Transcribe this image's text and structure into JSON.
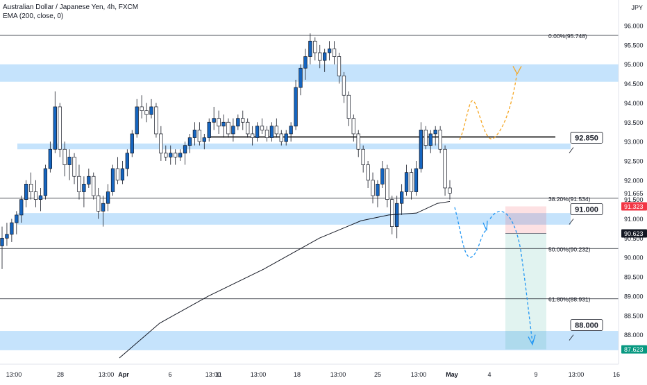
{
  "header": {
    "title": "Australian Dollar / Japanese Yen, 4h, FXCM",
    "indicator": "EMA (200, close, 0)",
    "currency": "JPY"
  },
  "chart_data": {
    "type": "candlestick",
    "symbol": "AUDJPY",
    "timeframe": "4h",
    "ylim": [
      87.3,
      96.4
    ],
    "price_ticks": [
      88.0,
      88.5,
      89.0,
      89.5,
      90.0,
      90.5,
      91.0,
      91.5,
      92.0,
      92.5,
      93.0,
      93.5,
      94.0,
      94.5,
      95.0,
      95.5,
      96.0
    ],
    "price_tick_labels": [
      "88.000",
      "88.500",
      "89.000",
      "89.500",
      "90.000",
      "90.500",
      "91.000",
      "91.500",
      "92.000",
      "92.500",
      "93.000",
      "93.500",
      "94.000",
      "94.500",
      "95.000",
      "95.500",
      "96.000"
    ],
    "time_labels": [
      "13:00",
      "28",
      "13:00",
      "Apr",
      "6",
      "13:00",
      "11",
      "13:00",
      "18",
      "13:00",
      "25",
      "13:00",
      "May",
      "4",
      "9",
      "13:00",
      "16"
    ],
    "axis_badges": [
      {
        "text": "91.665",
        "price": 91.665,
        "color": "#ffffff",
        "text_color": "#131722"
      },
      {
        "text": "91.323",
        "price": 91.323,
        "color": "#f23645",
        "text_color": "#ffffff"
      },
      {
        "text": "90.623",
        "price": 90.623,
        "color": "#131722",
        "text_color": "#ffffff"
      },
      {
        "text": "87.623",
        "price": 87.623,
        "color": "#089981",
        "text_color": "#ffffff"
      }
    ],
    "fib_levels": [
      {
        "label": "0.00%(95.748)",
        "price": 95.748
      },
      {
        "label": "38.20%(91.534)",
        "price": 91.534
      },
      {
        "label": "50.00%(90.232)",
        "price": 90.232
      },
      {
        "label": "61.80%(88.931)",
        "price": 88.931
      }
    ],
    "zones": [
      {
        "from": 94.55,
        "to": 95.0
      },
      {
        "from": 92.8,
        "to": 92.95
      },
      {
        "from": 90.85,
        "to": 91.15
      },
      {
        "from": 87.6,
        "to": 88.1
      }
    ],
    "callouts": [
      {
        "text": "92.850",
        "price": 92.85
      },
      {
        "text": "91.000",
        "price": 91.0
      },
      {
        "text": "88.000",
        "price": 88.0
      }
    ],
    "resistance_level": 93.12,
    "position": {
      "stop": 91.323,
      "entry": 90.623,
      "target": 87.623
    },
    "candles": [
      [
        90.3,
        90.8,
        89.7,
        90.5
      ],
      [
        90.5,
        90.9,
        90.3,
        90.6
      ],
      [
        90.6,
        91.0,
        90.4,
        90.9
      ],
      [
        90.9,
        91.2,
        90.6,
        91.1
      ],
      [
        91.1,
        91.6,
        90.9,
        91.5
      ],
      [
        91.5,
        92.0,
        91.3,
        91.9
      ],
      [
        91.9,
        92.2,
        91.5,
        91.7
      ],
      [
        91.7,
        92.0,
        91.3,
        91.5
      ],
      [
        91.5,
        91.8,
        91.2,
        91.6
      ],
      [
        91.6,
        92.4,
        91.5,
        92.3
      ],
      [
        92.3,
        93.0,
        92.2,
        92.8
      ],
      [
        92.8,
        94.3,
        92.7,
        93.9
      ],
      [
        93.9,
        94.0,
        92.6,
        92.8
      ],
      [
        92.8,
        93.0,
        92.1,
        92.4
      ],
      [
        92.4,
        92.8,
        92.0,
        92.6
      ],
      [
        92.6,
        92.7,
        91.9,
        92.1
      ],
      [
        92.1,
        92.4,
        91.5,
        91.7
      ],
      [
        91.7,
        92.1,
        91.3,
        91.9
      ],
      [
        91.9,
        92.3,
        91.8,
        92.1
      ],
      [
        92.1,
        92.2,
        91.5,
        91.6
      ],
      [
        91.6,
        91.8,
        91.0,
        91.2
      ],
      [
        91.2,
        91.6,
        90.8,
        91.4
      ],
      [
        91.4,
        91.9,
        91.2,
        91.7
      ],
      [
        91.7,
        92.4,
        91.6,
        92.3
      ],
      [
        92.3,
        92.6,
        91.9,
        92.0
      ],
      [
        92.0,
        92.5,
        91.9,
        92.3
      ],
      [
        92.3,
        92.8,
        92.1,
        92.7
      ],
      [
        92.7,
        93.3,
        92.6,
        93.2
      ],
      [
        93.2,
        94.1,
        93.1,
        93.9
      ],
      [
        93.9,
        94.2,
        93.6,
        93.8
      ],
      [
        93.8,
        94.0,
        93.5,
        93.7
      ],
      [
        93.7,
        94.1,
        93.6,
        93.9
      ],
      [
        93.9,
        94.0,
        93.1,
        93.2
      ],
      [
        93.2,
        93.4,
        92.5,
        92.7
      ],
      [
        92.7,
        92.9,
        92.5,
        92.6
      ],
      [
        92.6,
        92.9,
        92.4,
        92.7
      ],
      [
        92.7,
        92.8,
        92.4,
        92.6
      ],
      [
        92.6,
        92.8,
        92.5,
        92.7
      ],
      [
        92.7,
        93.0,
        92.4,
        92.9
      ],
      [
        92.9,
        93.2,
        92.7,
        93.1
      ],
      [
        93.1,
        93.5,
        92.9,
        93.3
      ],
      [
        93.3,
        93.5,
        92.9,
        93.0
      ],
      [
        93.0,
        93.2,
        92.8,
        93.1
      ],
      [
        93.1,
        93.6,
        93.0,
        93.5
      ],
      [
        93.5,
        93.9,
        93.3,
        93.6
      ],
      [
        93.6,
        93.8,
        93.2,
        93.4
      ],
      [
        93.4,
        93.7,
        93.1,
        93.5
      ],
      [
        93.5,
        93.6,
        93.1,
        93.2
      ],
      [
        93.2,
        93.6,
        93.0,
        93.4
      ],
      [
        93.4,
        93.7,
        93.3,
        93.6
      ],
      [
        93.6,
        93.8,
        93.3,
        93.5
      ],
      [
        93.5,
        93.6,
        93.1,
        93.2
      ],
      [
        93.2,
        93.4,
        92.9,
        93.1
      ],
      [
        93.1,
        93.5,
        93.0,
        93.4
      ],
      [
        93.4,
        93.6,
        93.2,
        93.3
      ],
      [
        93.3,
        93.4,
        93.0,
        93.1
      ],
      [
        93.1,
        93.5,
        93.0,
        93.4
      ],
      [
        93.4,
        93.6,
        93.1,
        93.2
      ],
      [
        93.2,
        93.3,
        92.9,
        93.0
      ],
      [
        93.0,
        93.3,
        92.9,
        93.2
      ],
      [
        93.2,
        93.5,
        93.0,
        93.4
      ],
      [
        93.4,
        94.6,
        93.3,
        94.4
      ],
      [
        94.4,
        95.0,
        94.2,
        94.9
      ],
      [
        94.9,
        95.4,
        94.6,
        95.2
      ],
      [
        95.2,
        95.8,
        95.0,
        95.6
      ],
      [
        95.6,
        95.7,
        95.1,
        95.3
      ],
      [
        95.3,
        95.5,
        94.9,
        95.1
      ],
      [
        95.1,
        95.4,
        94.8,
        95.3
      ],
      [
        95.3,
        95.6,
        95.1,
        95.4
      ],
      [
        95.4,
        95.6,
        95.0,
        95.2
      ],
      [
        95.2,
        95.3,
        94.5,
        94.7
      ],
      [
        94.7,
        94.8,
        94.0,
        94.2
      ],
      [
        94.2,
        94.3,
        93.4,
        93.6
      ],
      [
        93.6,
        93.7,
        93.0,
        93.2
      ],
      [
        93.2,
        93.3,
        92.6,
        92.8
      ],
      [
        92.8,
        92.9,
        92.2,
        92.4
      ],
      [
        92.4,
        92.5,
        91.8,
        92.0
      ],
      [
        92.0,
        92.2,
        91.4,
        91.6
      ],
      [
        91.6,
        92.0,
        91.3,
        91.9
      ],
      [
        91.9,
        92.5,
        91.8,
        92.3
      ],
      [
        92.3,
        92.4,
        91.3,
        91.5
      ],
      [
        91.5,
        91.6,
        90.6,
        90.8
      ],
      [
        90.8,
        91.6,
        90.5,
        91.4
      ],
      [
        91.4,
        91.9,
        91.1,
        91.7
      ],
      [
        91.7,
        92.4,
        91.6,
        92.2
      ],
      [
        92.2,
        92.3,
        91.5,
        91.7
      ],
      [
        91.7,
        92.5,
        91.6,
        92.3
      ],
      [
        92.3,
        93.5,
        92.2,
        93.3
      ],
      [
        93.3,
        93.4,
        92.8,
        92.9
      ],
      [
        92.9,
        93.3,
        92.7,
        93.2
      ],
      [
        93.2,
        93.4,
        92.9,
        93.3
      ],
      [
        93.3,
        93.4,
        92.7,
        92.8
      ],
      [
        92.8,
        92.9,
        91.6,
        91.8
      ],
      [
        91.8,
        92.0,
        91.5,
        91.665
      ]
    ]
  }
}
